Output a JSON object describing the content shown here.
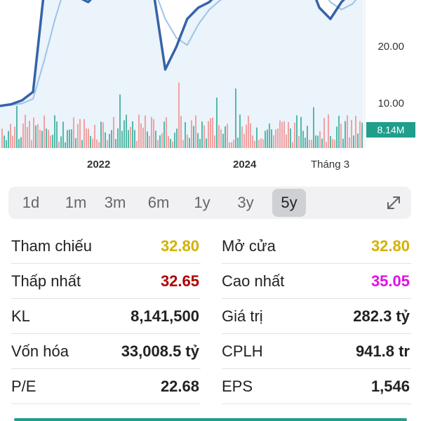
{
  "chart": {
    "y_ticks": [
      "20.00",
      "10.00"
    ],
    "volume_badge": "8.14M",
    "x_ticks": [
      "2022",
      "2024",
      "Tháng 3"
    ],
    "colors": {
      "price_line": "#3563a8",
      "ma_line": "#9ec3e6",
      "area_fill": "#e3eef9",
      "vol_up": "#55b9a8",
      "vol_down": "#f0a2a2",
      "badge": "#1f9e8c"
    }
  },
  "chart_data": {
    "type": "line",
    "series": [
      {
        "values": [
          9.5,
          9.8,
          10.5,
          12,
          30,
          33,
          31,
          29,
          28,
          30,
          31,
          33,
          32,
          30,
          29,
          16,
          20,
          25,
          27,
          28,
          30,
          31,
          33,
          34,
          33,
          31,
          32,
          33,
          32,
          27,
          25,
          28,
          30,
          32
        ]
      }
    ],
    "volume": {
      "label": "8.14M"
    },
    "yticks": [
      20,
      10
    ],
    "xticks": [
      "2022",
      "2024",
      "Tháng 3"
    ]
  },
  "periods": {
    "items": [
      {
        "label": "1d"
      },
      {
        "label": "1m"
      },
      {
        "label": "3m"
      },
      {
        "label": "6m"
      },
      {
        "label": "1y"
      },
      {
        "label": "3y"
      },
      {
        "label": "5y"
      }
    ],
    "active": "5y"
  },
  "stats": {
    "rows": [
      {
        "l_label": "Tham chiếu",
        "l_value": "32.80",
        "l_color": "#d4b000",
        "r_label": "Mở cửa",
        "r_value": "32.80",
        "r_color": "#d4b000"
      },
      {
        "l_label": "Thấp nhất",
        "l_value": "32.65",
        "l_color": "#b00000",
        "r_label": "Cao nhất",
        "r_value": "35.05",
        "r_color": "#e010e0"
      },
      {
        "l_label": "KL",
        "l_value": "8,141,500",
        "l_color": "#222222",
        "r_label": "Giá trị",
        "r_value": "282.3 tỷ",
        "r_color": "#222222"
      },
      {
        "l_label": "Vốn hóa",
        "l_value": "33,008.5 tỷ",
        "l_color": "#222222",
        "r_label": "CPLH",
        "r_value": "941.8 tr",
        "r_color": "#222222"
      },
      {
        "l_label": "P/E",
        "l_value": "22.68",
        "l_color": "#222222",
        "r_label": "EPS",
        "r_value": "1,546",
        "r_color": "#222222"
      }
    ]
  }
}
